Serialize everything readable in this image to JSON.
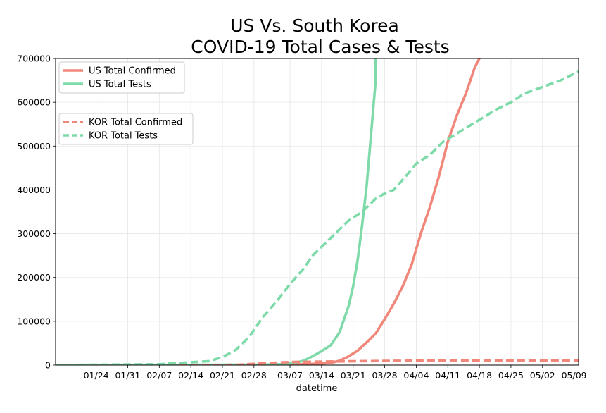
{
  "chart_data": {
    "type": "line",
    "title_lines": [
      "US Vs. South Korea",
      "COVID-19 Total Cases & Tests"
    ],
    "xlabel": "datetime",
    "ylabel": "",
    "xlim": [
      "2020-01-15",
      "2020-05-10"
    ],
    "ylim": [
      0,
      700000
    ],
    "grid": true,
    "x_ticks": [
      {
        "date": "2020-01-24",
        "label": "01/24"
      },
      {
        "date": "2020-01-31",
        "label": "01/31"
      },
      {
        "date": "2020-02-07",
        "label": "02/07"
      },
      {
        "date": "2020-02-14",
        "label": "02/14"
      },
      {
        "date": "2020-02-21",
        "label": "02/21"
      },
      {
        "date": "2020-02-28",
        "label": "02/28"
      },
      {
        "date": "2020-03-07",
        "label": "03/07"
      },
      {
        "date": "2020-03-14",
        "label": "03/14"
      },
      {
        "date": "2020-03-21",
        "label": "03/21"
      },
      {
        "date": "2020-03-28",
        "label": "03/28"
      },
      {
        "date": "2020-04-04",
        "label": "04/04"
      },
      {
        "date": "2020-04-11",
        "label": "04/11"
      },
      {
        "date": "2020-04-18",
        "label": "04/18"
      },
      {
        "date": "2020-04-25",
        "label": "04/25"
      },
      {
        "date": "2020-05-02",
        "label": "05/02"
      },
      {
        "date": "2020-05-09",
        "label": "05/09"
      }
    ],
    "y_ticks": [
      {
        "value": 0,
        "label": "0"
      },
      {
        "value": 100000,
        "label": "100000"
      },
      {
        "value": 200000,
        "label": "200000"
      },
      {
        "value": 300000,
        "label": "300000"
      },
      {
        "value": 400000,
        "label": "400000"
      },
      {
        "value": 500000,
        "label": "500000"
      },
      {
        "value": 600000,
        "label": "600000"
      },
      {
        "value": 700000,
        "label": "700000"
      }
    ],
    "legends": [
      {
        "placement": "top-left",
        "entries": [
          {
            "name": "US Total Confirmed",
            "color": "#f0877a",
            "dash": "solid"
          },
          {
            "name": "US Total Tests",
            "color": "#7edba9",
            "dash": "solid"
          }
        ]
      },
      {
        "placement": "upper-left",
        "entries": [
          {
            "name": "KOR Total Confirmed",
            "color": "#f0877a",
            "dash": "dashed"
          },
          {
            "name": "KOR Total Tests",
            "color": "#7edba9",
            "dash": "dashed"
          }
        ]
      }
    ],
    "series": [
      {
        "name": "US Total Confirmed",
        "color": "#f0877a",
        "dash": "solid",
        "points": [
          [
            "2020-01-15",
            0
          ],
          [
            "2020-02-21",
            100
          ],
          [
            "2020-03-01",
            500
          ],
          [
            "2020-03-07",
            800
          ],
          [
            "2020-03-10",
            2000
          ],
          [
            "2020-03-14",
            3500
          ],
          [
            "2020-03-16",
            5000
          ],
          [
            "2020-03-18",
            10000
          ],
          [
            "2020-03-20",
            20000
          ],
          [
            "2020-03-22",
            33000
          ],
          [
            "2020-03-24",
            52000
          ],
          [
            "2020-03-26",
            72000
          ],
          [
            "2020-03-28",
            105000
          ],
          [
            "2020-03-30",
            140000
          ],
          [
            "2020-04-01",
            180000
          ],
          [
            "2020-04-03",
            230000
          ],
          [
            "2020-04-05",
            300000
          ],
          [
            "2020-04-07",
            360000
          ],
          [
            "2020-04-09",
            430000
          ],
          [
            "2020-04-11",
            510000
          ],
          [
            "2020-04-13",
            570000
          ],
          [
            "2020-04-15",
            620000
          ],
          [
            "2020-04-17",
            680000
          ],
          [
            "2020-04-18",
            710000
          ]
        ]
      },
      {
        "name": "US Total Tests",
        "color": "#7edba9",
        "dash": "solid",
        "points": [
          [
            "2020-01-15",
            0
          ],
          [
            "2020-03-01",
            1000
          ],
          [
            "2020-03-05",
            2000
          ],
          [
            "2020-03-08",
            5000
          ],
          [
            "2020-03-10",
            10000
          ],
          [
            "2020-03-12",
            20000
          ],
          [
            "2020-03-14",
            32000
          ],
          [
            "2020-03-16",
            45000
          ],
          [
            "2020-03-18",
            75000
          ],
          [
            "2020-03-20",
            135000
          ],
          [
            "2020-03-21",
            180000
          ],
          [
            "2020-03-22",
            240000
          ],
          [
            "2020-03-23",
            320000
          ],
          [
            "2020-03-24",
            410000
          ],
          [
            "2020-03-25",
            530000
          ],
          [
            "2020-03-26",
            650000
          ],
          [
            "2020-03-26",
            710000
          ]
        ]
      },
      {
        "name": "KOR Total Confirmed",
        "color": "#f0877a",
        "dash": "dashed",
        "points": [
          [
            "2020-01-15",
            0
          ],
          [
            "2020-02-18",
            30
          ],
          [
            "2020-02-21",
            200
          ],
          [
            "2020-02-25",
            1000
          ],
          [
            "2020-02-29",
            3500
          ],
          [
            "2020-03-03",
            5000
          ],
          [
            "2020-03-07",
            7000
          ],
          [
            "2020-03-14",
            8000
          ],
          [
            "2020-03-21",
            8800
          ],
          [
            "2020-03-28",
            9500
          ],
          [
            "2020-04-04",
            10200
          ],
          [
            "2020-04-11",
            10500
          ],
          [
            "2020-04-18",
            10650
          ],
          [
            "2020-04-25",
            10730
          ],
          [
            "2020-05-02",
            10800
          ],
          [
            "2020-05-10",
            10870
          ]
        ]
      },
      {
        "name": "KOR Total Tests",
        "color": "#7edba9",
        "dash": "dashed",
        "points": [
          [
            "2020-01-15",
            0
          ],
          [
            "2020-02-07",
            2000
          ],
          [
            "2020-02-14",
            6500
          ],
          [
            "2020-02-18",
            9000
          ],
          [
            "2020-02-21",
            18000
          ],
          [
            "2020-02-24",
            35000
          ],
          [
            "2020-02-27",
            65000
          ],
          [
            "2020-03-01",
            110000
          ],
          [
            "2020-03-04",
            145000
          ],
          [
            "2020-03-07",
            185000
          ],
          [
            "2020-03-10",
            220000
          ],
          [
            "2020-03-12",
            250000
          ],
          [
            "2020-03-14",
            270000
          ],
          [
            "2020-03-17",
            300000
          ],
          [
            "2020-03-20",
            330000
          ],
          [
            "2020-03-23",
            350000
          ],
          [
            "2020-03-26",
            380000
          ],
          [
            "2020-03-28",
            392000
          ],
          [
            "2020-03-30",
            400000
          ],
          [
            "2020-04-02",
            435000
          ],
          [
            "2020-04-04",
            460000
          ],
          [
            "2020-04-07",
            480000
          ],
          [
            "2020-04-10",
            510000
          ],
          [
            "2020-04-14",
            535000
          ],
          [
            "2020-04-18",
            560000
          ],
          [
            "2020-04-22",
            585000
          ],
          [
            "2020-04-25",
            600000
          ],
          [
            "2020-04-28",
            620000
          ],
          [
            "2020-05-02",
            635000
          ],
          [
            "2020-05-06",
            650000
          ],
          [
            "2020-05-10",
            670000
          ]
        ]
      }
    ]
  }
}
